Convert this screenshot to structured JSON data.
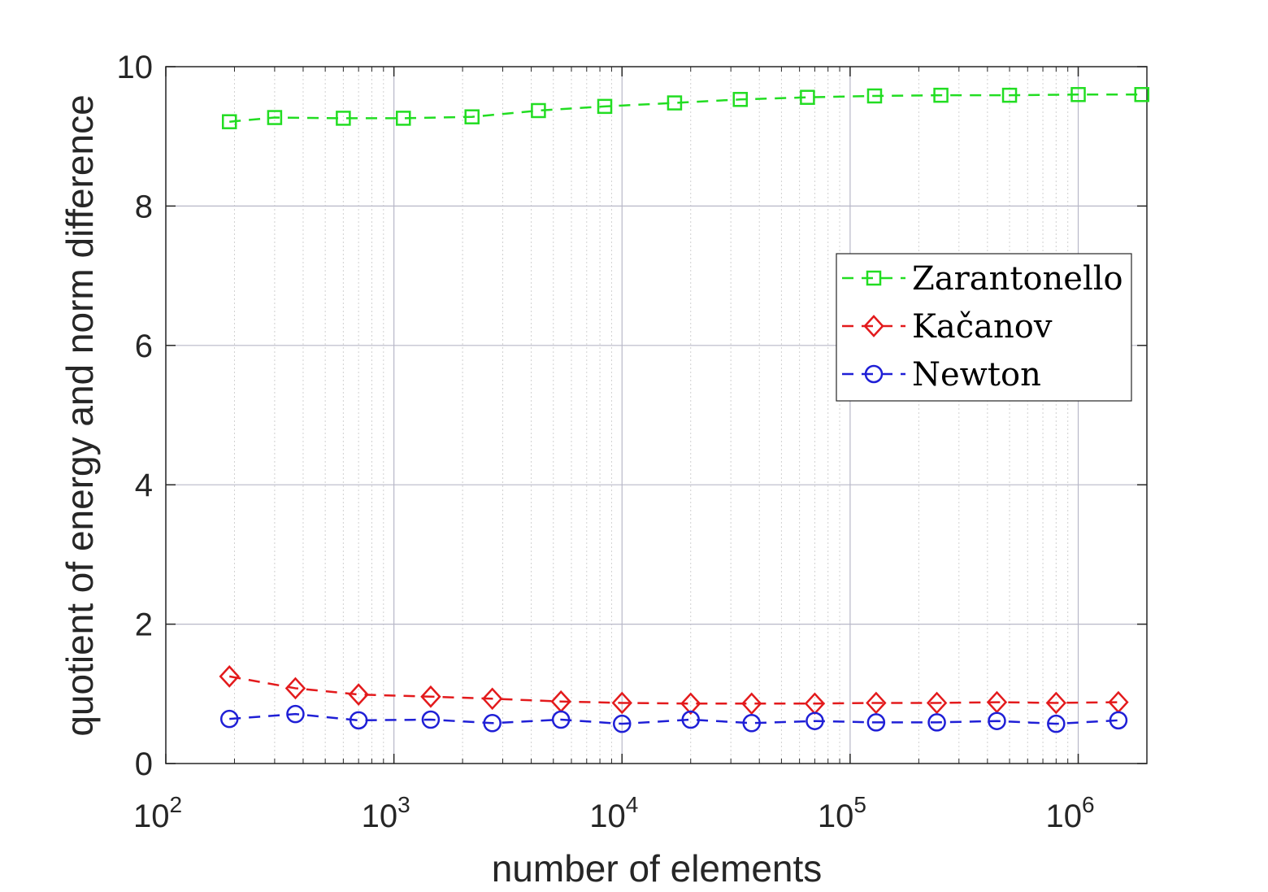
{
  "chart_data": {
    "type": "line",
    "xlabel": "number of elements",
    "ylabel": "quotient of energy and norm difference",
    "xscale": "log",
    "xlim": [
      100,
      2000000
    ],
    "ylim": [
      0,
      10
    ],
    "grid": "on",
    "legend_position": "top-right",
    "y_ticks": [
      "0",
      "2",
      "4",
      "6",
      "8",
      "10"
    ],
    "x_ticks": [
      {
        "base": "10",
        "exp": "2"
      },
      {
        "base": "10",
        "exp": "3"
      },
      {
        "base": "10",
        "exp": "4"
      },
      {
        "base": "10",
        "exp": "5"
      },
      {
        "base": "10",
        "exp": "6"
      }
    ],
    "series": [
      {
        "name": "Zarantonello",
        "color": "#22dd22",
        "marker": "square",
        "x": [
          190,
          300,
          600,
          1100,
          2200,
          4300,
          8400,
          17000,
          33000,
          65000,
          128000,
          250000,
          500000,
          1000000,
          1900000
        ],
        "y": [
          9.21,
          9.27,
          9.26,
          9.26,
          9.28,
          9.37,
          9.43,
          9.48,
          9.53,
          9.56,
          9.58,
          9.59,
          9.59,
          9.6,
          9.6
        ]
      },
      {
        "name": "Kačanov",
        "color": "#e31a1c",
        "marker": "diamond",
        "x": [
          190,
          370,
          700,
          1450,
          2700,
          5400,
          10000,
          20000,
          37000,
          70000,
          130000,
          240000,
          440000,
          800000,
          1500000
        ],
        "y": [
          1.25,
          1.08,
          0.99,
          0.96,
          0.93,
          0.89,
          0.87,
          0.86,
          0.86,
          0.86,
          0.87,
          0.87,
          0.88,
          0.87,
          0.88
        ]
      },
      {
        "name": "Newton",
        "color": "#1f1fd6",
        "marker": "circle",
        "x": [
          190,
          370,
          700,
          1450,
          2700,
          5400,
          10000,
          20000,
          37000,
          70000,
          130000,
          240000,
          440000,
          800000,
          1500000
        ],
        "y": [
          0.64,
          0.71,
          0.62,
          0.63,
          0.58,
          0.63,
          0.57,
          0.63,
          0.58,
          0.61,
          0.59,
          0.59,
          0.61,
          0.57,
          0.62
        ]
      }
    ]
  }
}
